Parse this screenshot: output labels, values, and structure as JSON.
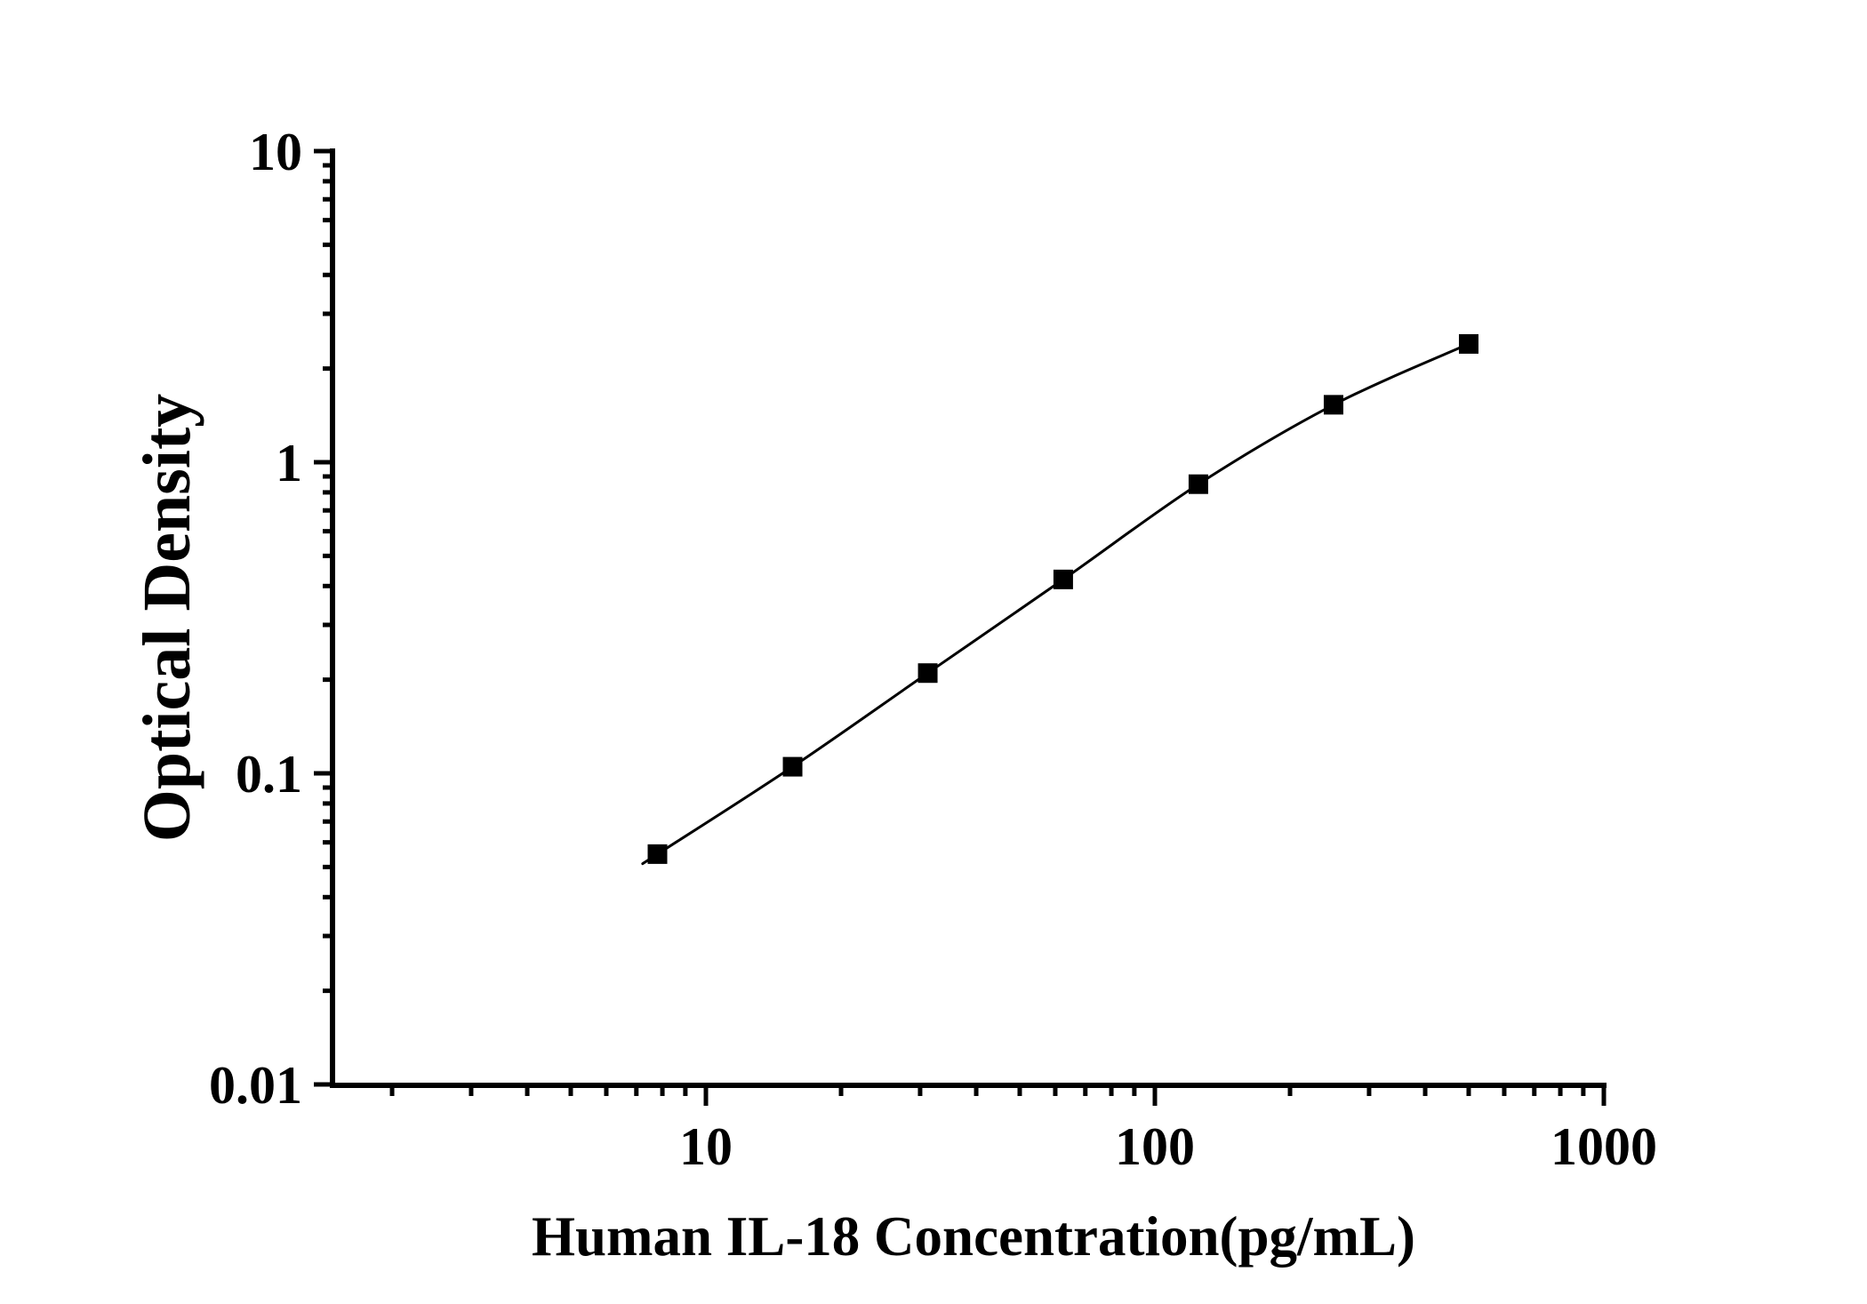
{
  "chart_data": {
    "type": "scatter",
    "subtype": "elisa-standard-curve-with-fitted-line",
    "title": "",
    "xlabel": "Human IL-18 Concentration(pg/mL)",
    "ylabel": "Optical Density",
    "x_scale": "log",
    "y_scale": "log",
    "x_range": [
      1.5,
      1010
    ],
    "y_range": [
      0.01,
      10
    ],
    "grid": "off",
    "legend": "none",
    "background_color": "#ffffff",
    "axis_color": "#000000",
    "x_ticks": [
      {
        "value": 10,
        "label": "10"
      },
      {
        "value": 100,
        "label": "100"
      },
      {
        "value": 1000,
        "label": "1000"
      }
    ],
    "y_ticks": [
      {
        "value": 0.01,
        "label": "0.01"
      },
      {
        "value": 0.1,
        "label": "0.1"
      },
      {
        "value": 1,
        "label": "1"
      },
      {
        "value": 10,
        "label": "10"
      }
    ],
    "series": [
      {
        "name": "standard-curve",
        "marker": "filled-square",
        "color": "#000000",
        "points": [
          {
            "x": 7.8,
            "y": 0.055
          },
          {
            "x": 15.6,
            "y": 0.105
          },
          {
            "x": 31.2,
            "y": 0.21
          },
          {
            "x": 62.5,
            "y": 0.42
          },
          {
            "x": 125,
            "y": 0.85
          },
          {
            "x": 250,
            "y": 1.53
          },
          {
            "x": 500,
            "y": 2.4
          }
        ]
      }
    ]
  }
}
